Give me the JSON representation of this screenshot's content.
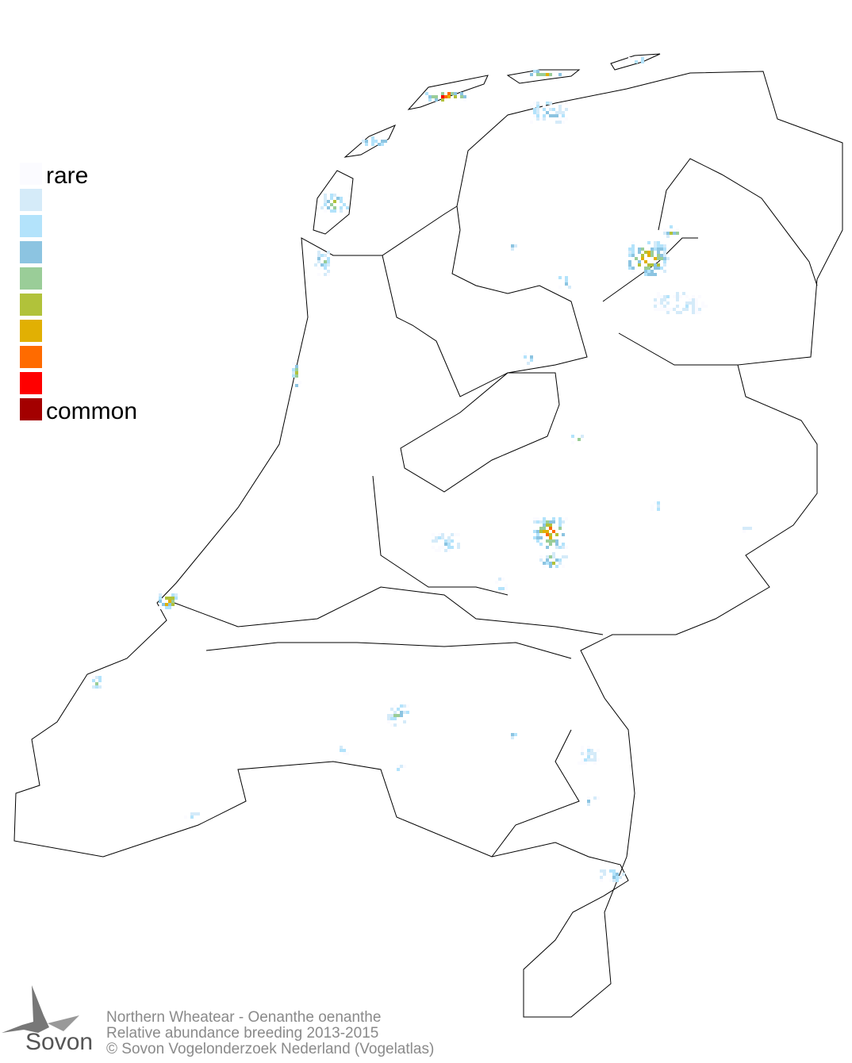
{
  "legend": {
    "rare_label": "rare",
    "common_label": "common",
    "colors": [
      "#fbfbff",
      "#d5ebf9",
      "#b3e3fb",
      "#8cc4e1",
      "#9acd98",
      "#b1c23a",
      "#e1b003",
      "#ff6b00",
      "#ff0000",
      "#a30000"
    ]
  },
  "footer": {
    "line1": "Northern Wheatear - Oenanthe oenanthe",
    "line2": "Relative abundance breeding 2013-2015",
    "line3": "© Sovon Vogelonderzoek Nederland (Vogelatlas)"
  },
  "logo": {
    "text": "Sovon"
  }
}
